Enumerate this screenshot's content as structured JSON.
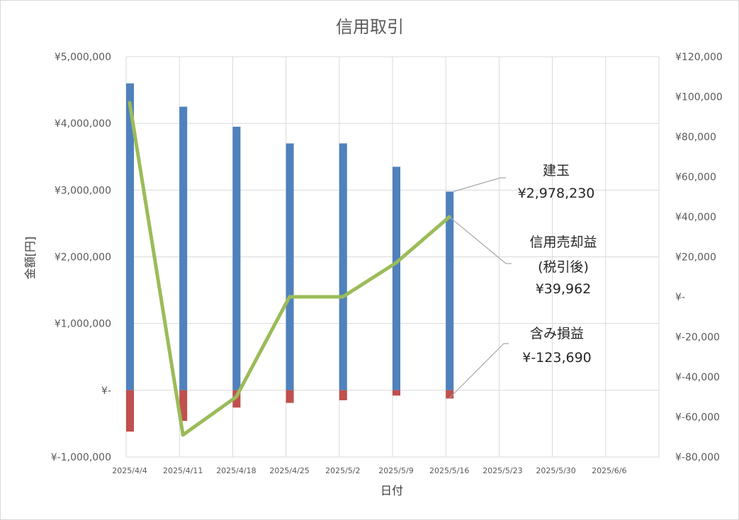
{
  "chart_data": {
    "type": "bar",
    "title": "信用取引",
    "xlabel": "日付",
    "ylabel": "金額[円]",
    "categories": [
      "2025/4/4",
      "2025/4/11",
      "2025/4/18",
      "2025/4/25",
      "2025/5/2",
      "2025/5/9",
      "2025/5/16",
      "2025/5/23",
      "2025/5/30",
      "2025/6/6"
    ],
    "y_left": {
      "ylim": [
        -1000000,
        5000000
      ],
      "ticks": [
        -1000000,
        0,
        1000000,
        2000000,
        3000000,
        4000000,
        5000000
      ],
      "tick_labels": [
        "¥-1,000,000",
        "¥-",
        "¥1,000,000",
        "¥2,000,000",
        "¥3,000,000",
        "¥4,000,000",
        "¥5,000,000"
      ]
    },
    "y_right": {
      "ylim": [
        -80000,
        120000
      ],
      "ticks": [
        -80000,
        -60000,
        -40000,
        -20000,
        0,
        20000,
        40000,
        60000,
        80000,
        100000,
        120000
      ],
      "tick_labels": [
        "¥-80,000",
        "¥-60,000",
        "¥-40,000",
        "¥-20,000",
        "¥-",
        "¥20,000",
        "¥40,000",
        "¥60,000",
        "¥80,000",
        "¥100,000",
        "¥120,000"
      ]
    },
    "grid": true,
    "series": [
      {
        "name": "建玉",
        "type": "bar",
        "axis": "left",
        "color": "#4f81bd",
        "values": [
          4600000,
          4250000,
          3950000,
          3700000,
          3700000,
          3350000,
          2978230,
          null,
          null,
          null
        ]
      },
      {
        "name": "含み損益",
        "type": "bar",
        "axis": "left",
        "color": "#c0504d",
        "values": [
          -620000,
          -460000,
          -260000,
          -190000,
          -150000,
          -80000,
          -123690,
          null,
          null,
          null
        ]
      },
      {
        "name": "信用売却益",
        "type": "line",
        "axis": "right",
        "color": "#9bbb59",
        "values": [
          97000,
          -69000,
          -50000,
          0,
          0,
          17000,
          39962,
          null,
          null,
          null
        ]
      }
    ],
    "annotations": [
      {
        "series": "建玉",
        "lines": [
          "建玉",
          "¥2,978,230"
        ]
      },
      {
        "series": "信用売却益",
        "lines": [
          "信用売却益",
          "(税引後)",
          "¥39,962"
        ]
      },
      {
        "series": "含み損益",
        "lines": [
          "含み損益",
          "¥-123,690"
        ]
      }
    ]
  }
}
